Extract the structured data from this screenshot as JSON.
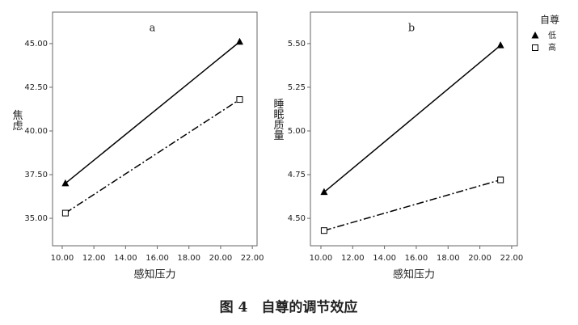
{
  "caption": "图 4　自尊的调节效应",
  "chart_data": [
    {
      "type": "line",
      "panel": "a",
      "y_label": "焦虑",
      "x_label": "感知压力",
      "xlim": [
        9.39,
        22.3
      ],
      "ylim": [
        33.43,
        46.8
      ],
      "xticks": [
        {
          "value": 10,
          "label": "10.00"
        },
        {
          "value": 12,
          "label": "12.00"
        },
        {
          "value": 14,
          "label": "14.00"
        },
        {
          "value": 16,
          "label": "16.00"
        },
        {
          "value": 18,
          "label": "18.00"
        },
        {
          "value": 20,
          "label": "20.00"
        },
        {
          "value": 22,
          "label": "22.00"
        }
      ],
      "yticks": [
        {
          "value": 35,
          "label": "35.00"
        },
        {
          "value": 37.5,
          "label": "37.50"
        },
        {
          "value": 40,
          "label": "40.00"
        },
        {
          "value": 42.5,
          "label": "42.50"
        },
        {
          "value": 45,
          "label": "45.00"
        }
      ],
      "series": [
        {
          "color": "#000000",
          "marker": "triangle",
          "line_style": "solid",
          "x": [
            10.2,
            21.2
          ],
          "values": [
            37.0,
            45.1
          ]
        },
        {
          "color": "#000000",
          "marker": "square",
          "line_style": "dashdot",
          "x": [
            10.2,
            21.2
          ],
          "values": [
            35.3,
            41.8
          ]
        }
      ]
    },
    {
      "type": "line",
      "panel": "b",
      "y_label": "睡眠质量",
      "x_label": "感知压力",
      "legend_title": "自尊",
      "xlim": [
        9.34,
        22.36
      ],
      "ylim": [
        4.343,
        5.68
      ],
      "xticks": [
        {
          "value": 10,
          "label": "10.00"
        },
        {
          "value": 12,
          "label": "12.00"
        },
        {
          "value": 14,
          "label": "14.00"
        },
        {
          "value": 16,
          "label": "16.00"
        },
        {
          "value": 18,
          "label": "18.00"
        },
        {
          "value": 20,
          "label": "20.00"
        },
        {
          "value": 22,
          "label": "22.00"
        }
      ],
      "yticks": [
        {
          "value": 4.5,
          "label": "4.50"
        },
        {
          "value": 4.75,
          "label": "4.75"
        },
        {
          "value": 5,
          "label": "5.00"
        },
        {
          "value": 5.25,
          "label": "5.25"
        },
        {
          "value": 5.5,
          "label": "5.50"
        }
      ],
      "series": [
        {
          "name": "低",
          "color": "#000000",
          "marker": "triangle",
          "line_style": "solid",
          "x": [
            10.2,
            21.3
          ],
          "values": [
            4.65,
            5.49
          ]
        },
        {
          "name": "高",
          "color": "#000000",
          "marker": "square",
          "line_style": "dashdot",
          "x": [
            10.2,
            21.3
          ],
          "values": [
            4.43,
            4.72
          ]
        }
      ]
    }
  ]
}
